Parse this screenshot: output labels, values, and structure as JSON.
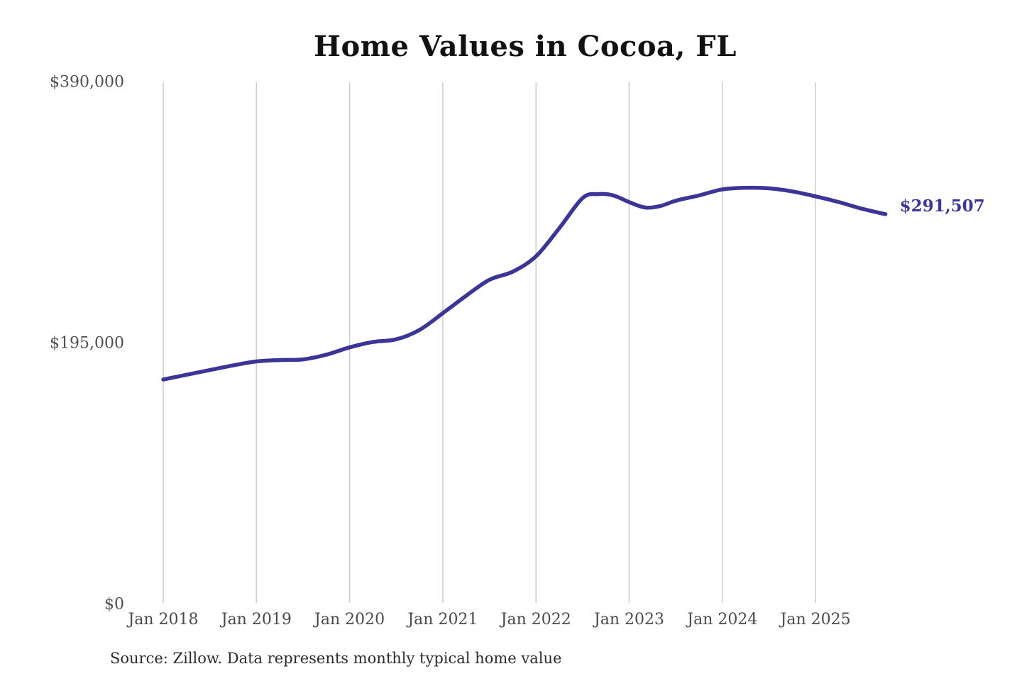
{
  "chart_data": {
    "type": "line",
    "title": "Home Values in Cocoa, FL",
    "source_note": "Source: Zillow. Data represents monthly typical home value",
    "end_label": "$291,507",
    "latest_value": 291507,
    "line_color": "#3a3597",
    "grid_color": "#cccccc",
    "ylim": [
      0,
      390000
    ],
    "grid": "vertical-only",
    "legend_position": "none",
    "y_ticks": [
      {
        "value": 390000,
        "label": "$390,000"
      },
      {
        "value": 195000,
        "label": "$195,000"
      },
      {
        "value": 0,
        "label": "$0"
      }
    ],
    "x_ticks": [
      {
        "year": 2018,
        "label": "Jan 2018"
      },
      {
        "year": 2019,
        "label": "Jan 2019"
      },
      {
        "year": 2020,
        "label": "Jan 2020"
      },
      {
        "year": 2021,
        "label": "Jan 2021"
      },
      {
        "year": 2022,
        "label": "Jan 2022"
      },
      {
        "year": 2023,
        "label": "Jan 2023"
      },
      {
        "year": 2024,
        "label": "Jan 2024"
      },
      {
        "year": 2025,
        "label": "Jan 2025"
      }
    ],
    "series": [
      {
        "name": "Monthly typical home value",
        "points": [
          [
            2018.0,
            168000
          ],
          [
            2018.25,
            171500
          ],
          [
            2018.5,
            175000
          ],
          [
            2018.75,
            178500
          ],
          [
            2019.0,
            181500
          ],
          [
            2019.25,
            182500
          ],
          [
            2019.5,
            183000
          ],
          [
            2019.75,
            186500
          ],
          [
            2020.0,
            192000
          ],
          [
            2020.25,
            196000
          ],
          [
            2020.5,
            198000
          ],
          [
            2020.75,
            205000
          ],
          [
            2021.0,
            217500
          ],
          [
            2021.25,
            230500
          ],
          [
            2021.5,
            242500
          ],
          [
            2021.75,
            248500
          ],
          [
            2022.0,
            260000
          ],
          [
            2022.25,
            281000
          ],
          [
            2022.5,
            303500
          ],
          [
            2022.67,
            306500
          ],
          [
            2022.83,
            305500
          ],
          [
            2023.0,
            300500
          ],
          [
            2023.17,
            296500
          ],
          [
            2023.33,
            297500
          ],
          [
            2023.5,
            301500
          ],
          [
            2023.75,
            305500
          ],
          [
            2024.0,
            310000
          ],
          [
            2024.25,
            311200
          ],
          [
            2024.5,
            310800
          ],
          [
            2024.75,
            308500
          ],
          [
            2025.0,
            304800
          ],
          [
            2025.25,
            300500
          ],
          [
            2025.5,
            295500
          ],
          [
            2025.75,
            291507
          ]
        ]
      }
    ]
  }
}
